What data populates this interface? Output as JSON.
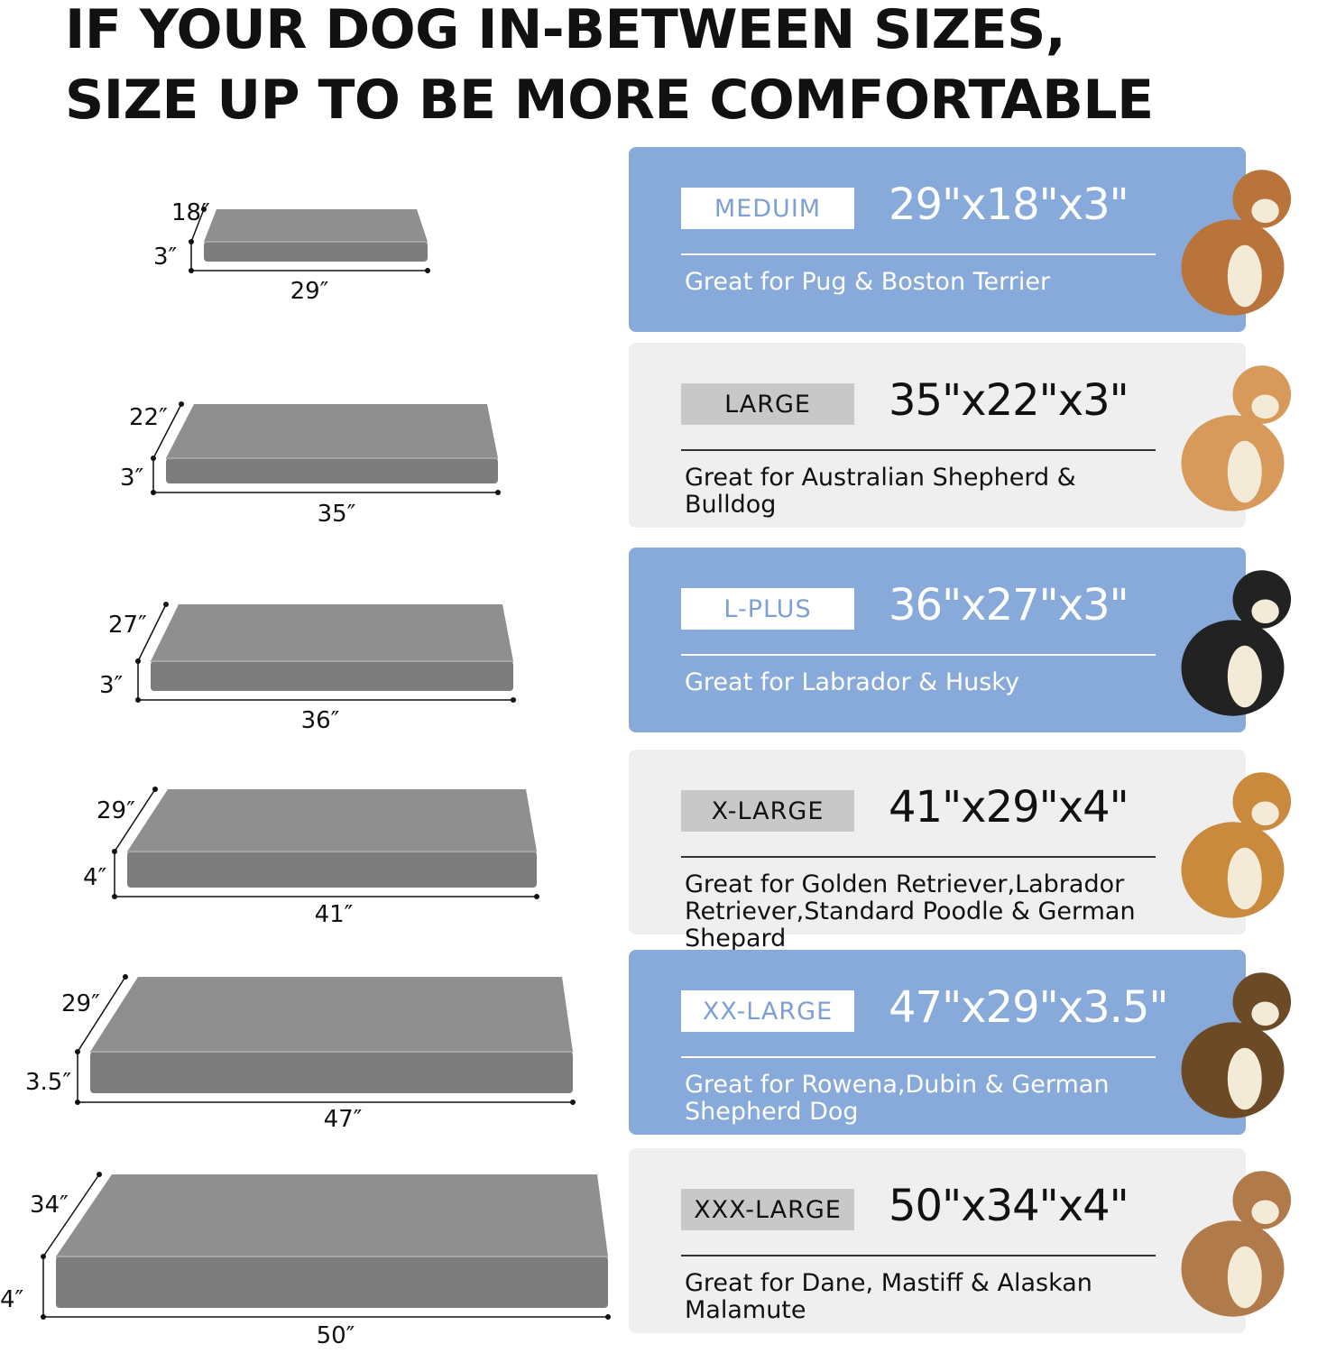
{
  "headline": [
    "IF YOUR DOG IN-BETWEEN SIZES,",
    "SIZE UP TO BE MORE COMFORTABLE"
  ],
  "colors": {
    "blue_card": "#88aadb",
    "grey_card": "#efefef",
    "bed": "#8c8c8c"
  },
  "beds": [
    {
      "depth": "18″",
      "height": "3″",
      "width": "29″"
    },
    {
      "depth": "22″",
      "height": "3″",
      "width": "35″"
    },
    {
      "depth": "27″",
      "height": "3″",
      "width": "36″"
    },
    {
      "depth": "29″",
      "height": "4″",
      "width": "41″"
    },
    {
      "depth": "29″",
      "height": "3.5″",
      "width": "47″"
    },
    {
      "depth": "34″",
      "height": "4″",
      "width": "50″"
    }
  ],
  "sizes": [
    {
      "label": "MEDUIM",
      "dims": "29\"x18\"x3\"",
      "desc": "Great for Pug & Boston Terrier",
      "style": "blue",
      "dog": "bulldog-icon"
    },
    {
      "label": "LARGE",
      "dims": "35\"x22\"x3\"",
      "desc": "Great for Australian Shepherd & Bulldog",
      "style": "grey",
      "dog": "shiba-icon"
    },
    {
      "label": "L-PLUS",
      "dims": "36\"x27\"x3\"",
      "desc": "Great for Labrador & Husky",
      "style": "blue",
      "dog": "border-collie-icon"
    },
    {
      "label": "X-LARGE",
      "dims": "41\"x29\"x4\"",
      "desc": "Great for Golden Retriever,Labrador Retriever,Standard Poodle & German Shepard",
      "style": "grey",
      "dog": "golden-retriever-icon"
    },
    {
      "label": "XX-LARGE",
      "dims": "47\"x29\"x3.5\"",
      "desc": "Great for Rowena,Dubin & German Shepherd Dog",
      "style": "blue",
      "dog": "german-shepherd-icon"
    },
    {
      "label": "XXX-LARGE",
      "dims": "50\"x34\"x4\"",
      "desc": "Great for Dane, Mastiff & Alaskan Malamute",
      "style": "grey",
      "dog": "mastiff-icon"
    }
  ]
}
